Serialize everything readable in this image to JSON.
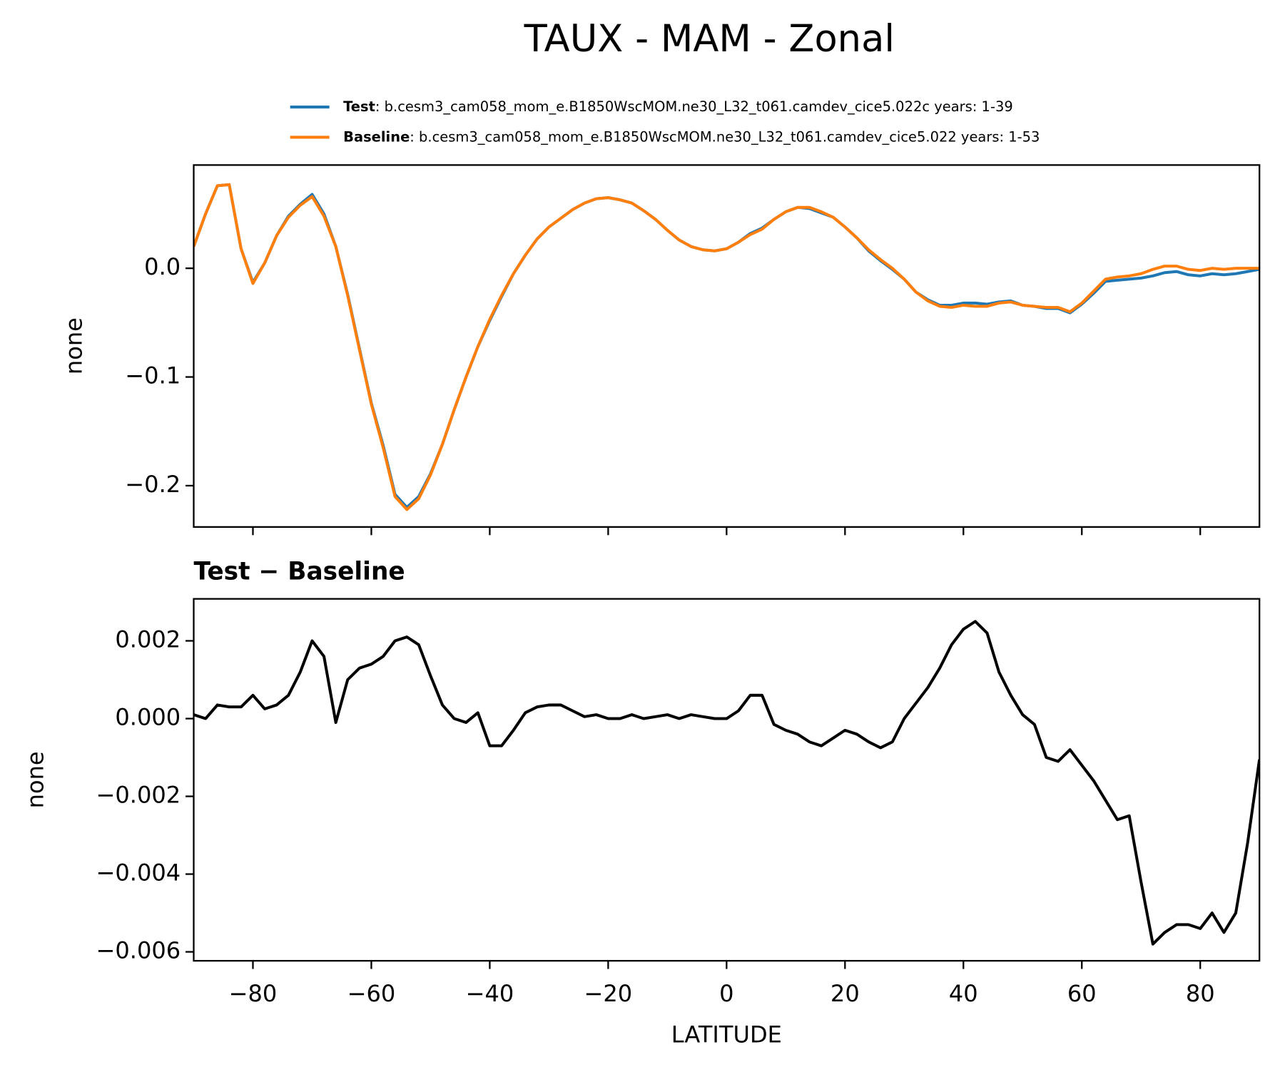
{
  "title": "TAUX - MAM - Zonal",
  "chart_data": [
    {
      "type": "line",
      "ylabel": "none",
      "legend": "above",
      "xlim": [
        -90,
        90
      ],
      "ylim": [
        -0.238,
        0.095
      ],
      "xticks": [
        -80,
        -60,
        -40,
        -20,
        0,
        20,
        40,
        60,
        80
      ],
      "xtick_labels": false,
      "yticks": [
        {
          "value": -0.2,
          "label": "−0.2"
        },
        {
          "value": -0.1,
          "label": "−0.1"
        },
        {
          "value": 0,
          "label": "0.0"
        }
      ],
      "x": [
        -90,
        -88,
        -86,
        -84,
        -82,
        -80,
        -78,
        -76,
        -74,
        -72,
        -70,
        -68,
        -66,
        -64,
        -62,
        -60,
        -58,
        -56,
        -54,
        -52,
        -50,
        -48,
        -46,
        -44,
        -42,
        -40,
        -38,
        -36,
        -34,
        -32,
        -30,
        -28,
        -26,
        -24,
        -22,
        -20,
        -18,
        -16,
        -14,
        -12,
        -10,
        -8,
        -6,
        -4,
        -2,
        0,
        2,
        4,
        6,
        8,
        10,
        12,
        14,
        16,
        18,
        20,
        22,
        24,
        26,
        28,
        30,
        32,
        34,
        36,
        38,
        40,
        42,
        44,
        46,
        48,
        50,
        52,
        54,
        56,
        58,
        60,
        62,
        64,
        66,
        68,
        70,
        72,
        74,
        76,
        78,
        80,
        82,
        84,
        86,
        88,
        90
      ],
      "series": [
        {
          "name": "Test",
          "description": ":  b.cesm3_cam058_mom_e.B1850WscMOM.ne30_L32_t061.camdev_cice5.022c  years: 1-39",
          "color": "#1f77b4",
          "values": [
            0.02,
            0.05,
            0.076,
            0.077,
            0.018,
            -0.013,
            0.005,
            0.03,
            0.048,
            0.059,
            0.068,
            0.05,
            0.02,
            -0.024,
            -0.074,
            -0.124,
            -0.163,
            -0.208,
            -0.22,
            -0.21,
            -0.189,
            -0.162,
            -0.13,
            -0.1,
            -0.072,
            -0.048,
            -0.026,
            -0.005,
            0.012,
            0.027,
            0.038,
            0.046,
            0.054,
            0.06,
            0.064,
            0.065,
            0.063,
            0.06,
            0.053,
            0.045,
            0.035,
            0.026,
            0.02,
            0.017,
            0.016,
            0.018,
            0.024,
            0.032,
            0.037,
            0.045,
            0.052,
            0.056,
            0.055,
            0.051,
            0.047,
            0.038,
            0.028,
            0.016,
            0.007,
            -0.001,
            -0.01,
            -0.022,
            -0.029,
            -0.034,
            -0.034,
            -0.032,
            -0.032,
            -0.033,
            -0.031,
            -0.03,
            -0.034,
            -0.035,
            -0.037,
            -0.037,
            -0.041,
            -0.033,
            -0.023,
            -0.012,
            -0.011,
            -0.01,
            -0.009,
            -0.007,
            -0.004,
            -0.003,
            -0.006,
            -0.007,
            -0.005,
            -0.006,
            -0.005,
            -0.003,
            -0.001
          ]
        },
        {
          "name": "Baseline",
          "description": ":  b.cesm3_cam058_mom_e.B1850WscMOM.ne30_L32_t061.camdev_cice5.022  years: 1-53",
          "color": "#ff7f0e",
          "values": [
            0.02,
            0.05,
            0.076,
            0.077,
            0.018,
            -0.014,
            0.005,
            0.03,
            0.047,
            0.058,
            0.066,
            0.048,
            0.02,
            -0.025,
            -0.075,
            -0.125,
            -0.165,
            -0.21,
            -0.222,
            -0.212,
            -0.19,
            -0.162,
            -0.13,
            -0.1,
            -0.072,
            -0.047,
            -0.025,
            -0.005,
            0.012,
            0.027,
            0.038,
            0.046,
            0.054,
            0.06,
            0.064,
            0.065,
            0.063,
            0.06,
            0.053,
            0.045,
            0.035,
            0.026,
            0.02,
            0.017,
            0.016,
            0.018,
            0.024,
            0.031,
            0.036,
            0.045,
            0.052,
            0.056,
            0.056,
            0.052,
            0.047,
            0.038,
            0.028,
            0.017,
            0.008,
            0.0,
            -0.01,
            -0.022,
            -0.03,
            -0.035,
            -0.036,
            -0.034,
            -0.035,
            -0.035,
            -0.032,
            -0.031,
            -0.034,
            -0.035,
            -0.036,
            -0.036,
            -0.04,
            -0.032,
            -0.021,
            -0.01,
            -0.008,
            -0.007,
            -0.005,
            -0.001,
            0.002,
            0.002,
            -0.001,
            -0.002,
            0.0,
            -0.001,
            0.0,
            0.0,
            0.0
          ]
        }
      ]
    },
    {
      "type": "line",
      "title": "Test − Baseline",
      "xlabel": "LATITUDE",
      "ylabel": "none",
      "xlim": [
        -90,
        90
      ],
      "ylim": [
        -0.00623,
        0.00308
      ],
      "xticks": [
        {
          "value": -80,
          "label": "−80"
        },
        {
          "value": -60,
          "label": "−60"
        },
        {
          "value": -40,
          "label": "−40"
        },
        {
          "value": -20,
          "label": "−20"
        },
        0,
        20,
        40,
        60,
        80
      ],
      "yticks": [
        {
          "value": -0.006,
          "label": "−0.006"
        },
        {
          "value": -0.004,
          "label": "−0.004"
        },
        {
          "value": -0.002,
          "label": "−0.002"
        },
        {
          "value": 0,
          "label": "0.000"
        },
        {
          "value": 0.002,
          "label": "0.002"
        }
      ],
      "x": [
        -90,
        -88,
        -86,
        -84,
        -82,
        -80,
        -78,
        -76,
        -74,
        -72,
        -70,
        -68,
        -66,
        -64,
        -62,
        -60,
        -58,
        -56,
        -54,
        -52,
        -50,
        -48,
        -46,
        -44,
        -42,
        -40,
        -38,
        -36,
        -34,
        -32,
        -30,
        -28,
        -26,
        -24,
        -22,
        -20,
        -18,
        -16,
        -14,
        -12,
        -10,
        -8,
        -6,
        -4,
        -2,
        0,
        2,
        4,
        6,
        8,
        10,
        12,
        14,
        16,
        18,
        20,
        22,
        24,
        26,
        28,
        30,
        32,
        34,
        36,
        38,
        40,
        42,
        44,
        46,
        48,
        50,
        52,
        54,
        56,
        58,
        60,
        62,
        64,
        66,
        68,
        70,
        72,
        74,
        76,
        78,
        80,
        82,
        84,
        86,
        88,
        90
      ],
      "series": [
        {
          "color": "#000000",
          "values": [
            0.0001,
            0.0,
            0.00035,
            0.0003,
            0.0003,
            0.0006,
            0.00025,
            0.00035,
            0.0006,
            0.0012,
            0.002,
            0.0016,
            -0.0001,
            0.001,
            0.0013,
            0.0014,
            0.0016,
            0.002,
            0.0021,
            0.0019,
            0.0011,
            0.00035,
            0.0,
            -0.0001,
            0.00015,
            -0.0007,
            -0.0007,
            -0.0003,
            0.00015,
            0.0003,
            0.00035,
            0.00035,
            0.0002,
            5e-05,
            0.0001,
            0.0,
            0.0,
            0.0001,
            0.0,
            5e-05,
            0.0001,
            0.0,
            0.0001,
            5e-05,
            0.0,
            0.0,
            0.0002,
            0.0006,
            0.0006,
            -0.00015,
            -0.0003,
            -0.0004,
            -0.0006,
            -0.0007,
            -0.0005,
            -0.0003,
            -0.0004,
            -0.0006,
            -0.00075,
            -0.0006,
            0.0,
            0.0004,
            0.0008,
            0.0013,
            0.0019,
            0.0023,
            0.0025,
            0.0022,
            0.0012,
            0.0006,
            0.0001,
            -0.00015,
            -0.001,
            -0.0011,
            -0.0008,
            -0.0012,
            -0.0016,
            -0.0021,
            -0.0026,
            -0.0025,
            -0.0042,
            -0.0058,
            -0.0055,
            -0.0053,
            -0.0053,
            -0.0054,
            -0.005,
            -0.0055,
            -0.005,
            -0.0032,
            -0.00105
          ]
        }
      ]
    }
  ]
}
